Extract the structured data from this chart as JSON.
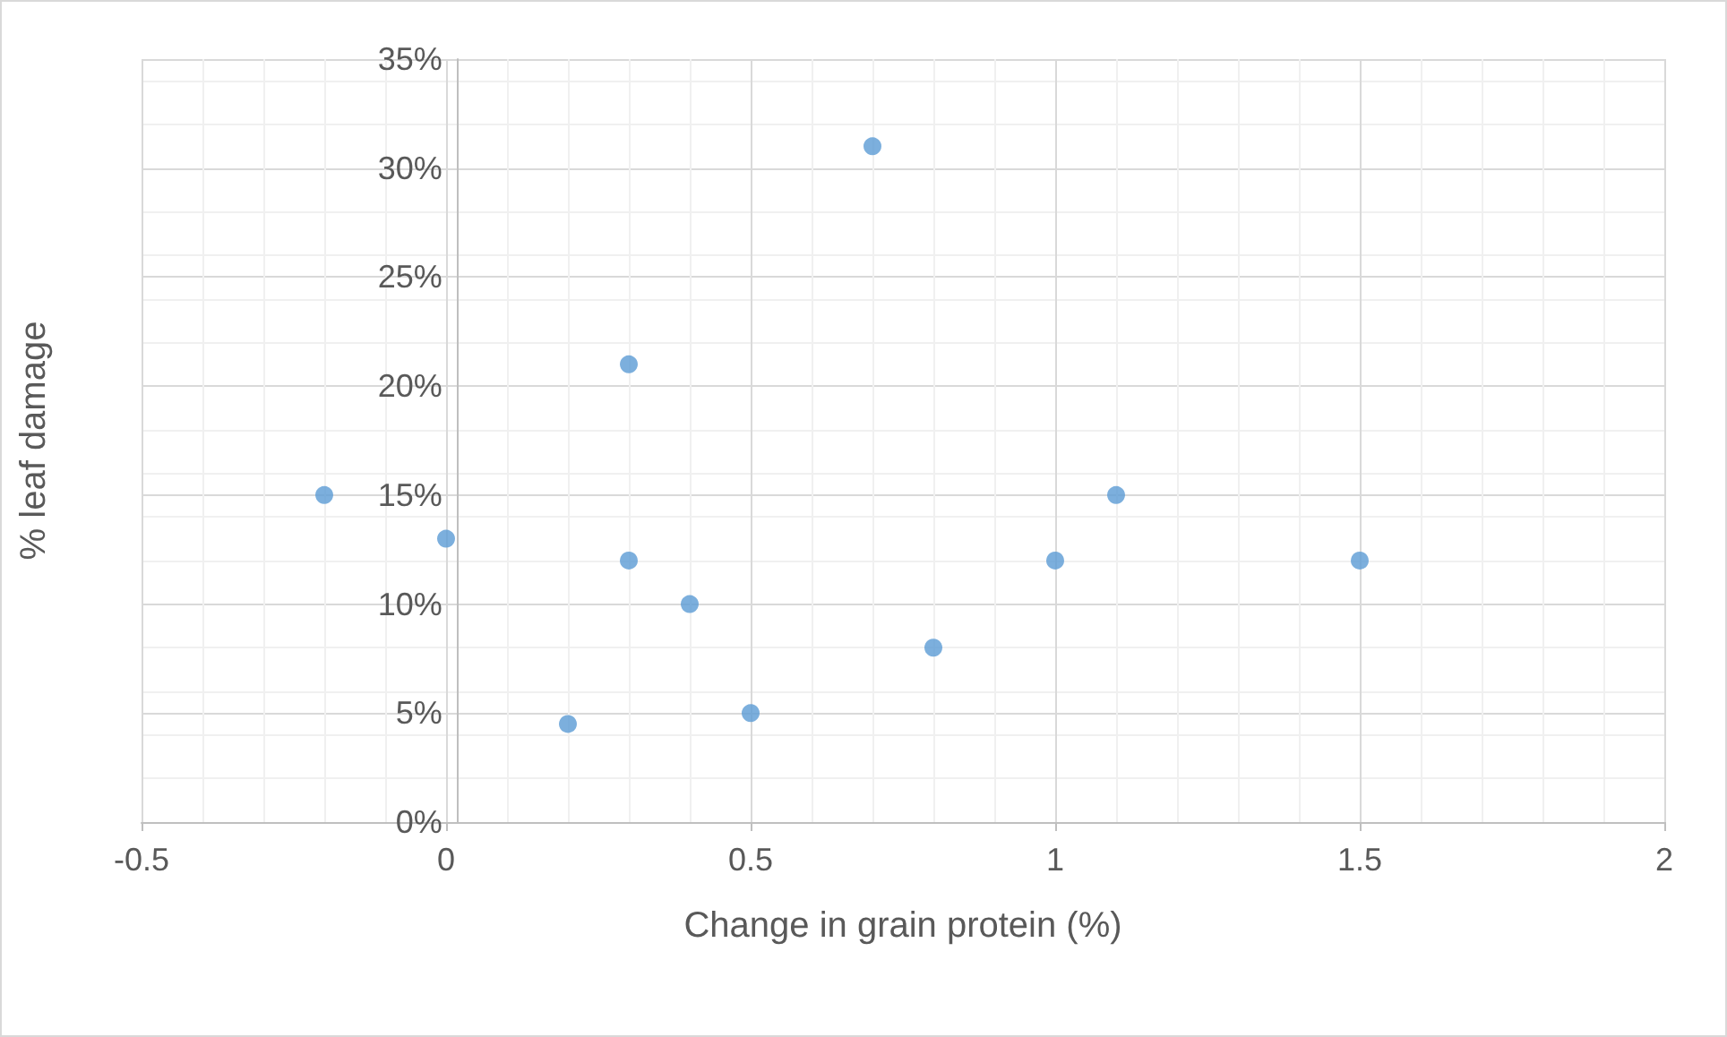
{
  "chart_data": {
    "type": "scatter",
    "xlabel": "Change in grain protein (%)",
    "ylabel": "% leaf damage",
    "x": [
      -0.2,
      0,
      0.2,
      0.3,
      0.3,
      0.4,
      0.5,
      0.7,
      0.8,
      1.0,
      1.1,
      1.5
    ],
    "series": [
      {
        "color": "#5b9bd5",
        "values": [
          15,
          13,
          4.5,
          21,
          12,
          10,
          5,
          31,
          8,
          12,
          15,
          12
        ]
      }
    ],
    "xlim": [
      -0.5,
      2
    ],
    "xticks": [
      -0.5,
      0,
      0.5,
      1,
      1.5,
      2
    ],
    "ylim": [
      0,
      35
    ],
    "yticks": [
      {
        "value": 0,
        "label": "0%"
      },
      {
        "value": 5,
        "label": "5%"
      },
      {
        "value": 10,
        "label": "10%"
      },
      {
        "value": 15,
        "label": "15%"
      },
      {
        "value": 20,
        "label": "20%"
      },
      {
        "value": 25,
        "label": "25%"
      },
      {
        "value": 30,
        "label": "30%"
      },
      {
        "value": 35,
        "label": "35%"
      }
    ],
    "grid": true,
    "marker": "circle"
  }
}
